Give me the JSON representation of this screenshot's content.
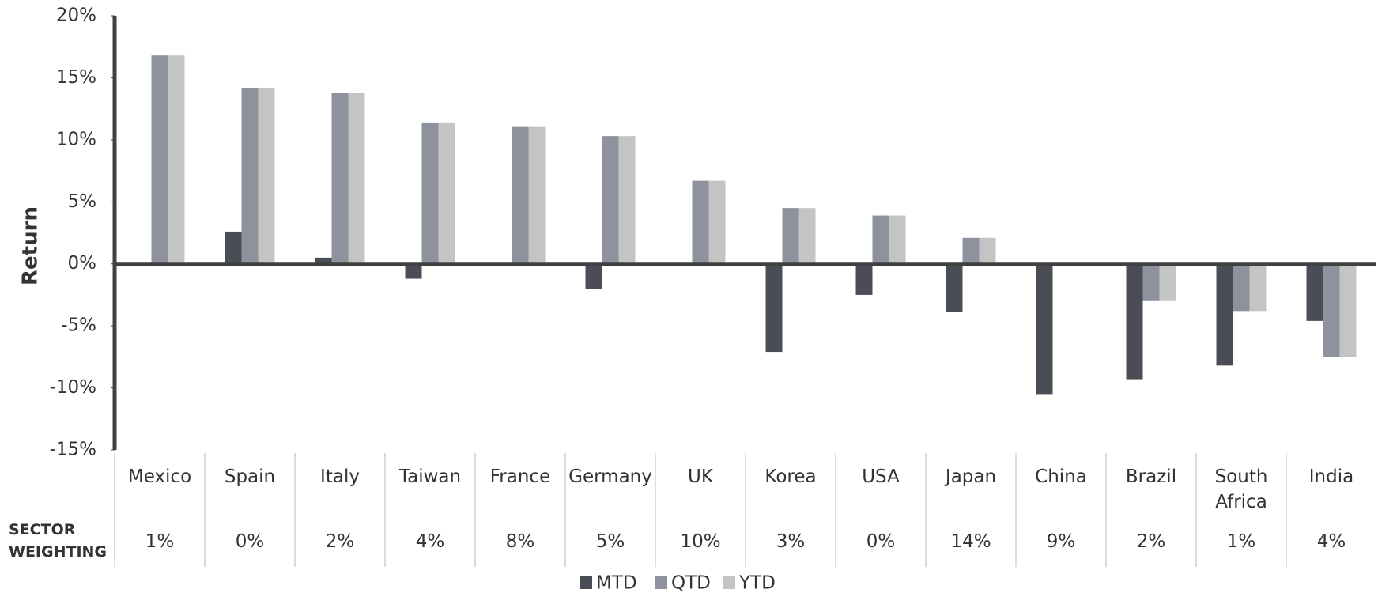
{
  "chart_data": {
    "type": "bar",
    "y_label": "Return",
    "categories": [
      "Mexico",
      "Spain",
      "Italy",
      "Taiwan",
      "France",
      "Germany",
      "UK",
      "Korea",
      "USA",
      "Japan",
      "China",
      "Brazil",
      "South Africa",
      "India"
    ],
    "series": [
      {
        "name": "MTD",
        "color": "#4a4d55",
        "values": [
          0,
          2.6,
          0.5,
          -1.2,
          0,
          -2,
          0.1,
          -7.1,
          -2.5,
          -3.9,
          -10.5,
          -9.3,
          -8.2,
          -4.6
        ]
      },
      {
        "name": "QTD",
        "color": "#8e929c",
        "values": [
          16.8,
          14.2,
          13.8,
          11.4,
          11.1,
          10.3,
          6.7,
          4.5,
          3.9,
          2.1,
          0,
          -3,
          -3.8,
          -7.5
        ]
      },
      {
        "name": "YTD",
        "color": "#c4c4c4",
        "values": [
          16.8,
          14.2,
          13.8,
          11.4,
          11.1,
          10.3,
          6.7,
          4.5,
          3.9,
          2.1,
          0,
          -3,
          -3.8,
          -7.5
        ]
      }
    ],
    "ylim": [
      -15,
      20
    ],
    "yticks": [
      {
        "value": -15,
        "label": "-15%"
      },
      {
        "value": -10,
        "label": "-10%"
      },
      {
        "value": -5,
        "label": "-5%"
      },
      {
        "value": 0,
        "label": "0%"
      },
      {
        "value": 5,
        "label": "5%"
      },
      {
        "value": 10,
        "label": "10%"
      },
      {
        "value": 15,
        "label": "15%"
      },
      {
        "value": 20,
        "label": "20%"
      }
    ],
    "grid": false,
    "legend": "bottom",
    "table": {
      "row_label": "SECTOR WEIGHTING",
      "values": [
        "1%",
        "0%",
        "2%",
        "4%",
        "8%",
        "5%",
        "10%",
        "3%",
        "0%",
        "14%",
        "9%",
        "2%",
        "1%",
        "4%"
      ]
    }
  }
}
